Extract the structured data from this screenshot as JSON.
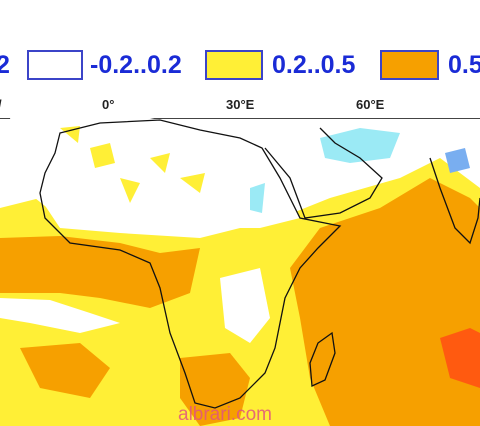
{
  "legend": [
    "2",
    "-0.2..0.2",
    "0.2..0.5",
    "0.5"
  ],
  "longitudes": [
    "/",
    "0°",
    "30°E",
    "60°E"
  ],
  "watermark": "albrari.com"
}
